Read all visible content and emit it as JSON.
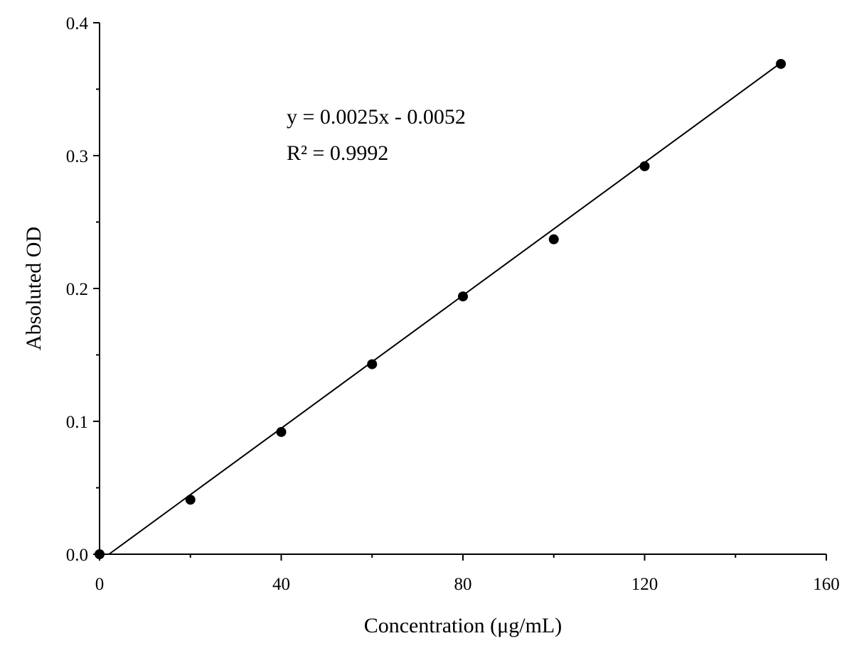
{
  "chart_data": {
    "type": "scatter",
    "x_label": "Concentration (μg/mL)",
    "y_label": "Absoluted OD",
    "annotations": [
      "y = 0.0025x - 0.0052",
      "R² = 0.9992"
    ],
    "series": [
      {
        "x": [
          0,
          20,
          40,
          60,
          80,
          100,
          120,
          150
        ],
        "values": [
          0,
          0.041,
          0.092,
          0.143,
          0.194,
          0.237,
          0.292,
          0.369
        ],
        "color": "#000000"
      }
    ],
    "fit_line": {
      "x": [
        2.08,
        150
      ],
      "values": [
        0,
        0.3698
      ],
      "color": "#000000"
    },
    "xlim": [
      0,
      160
    ],
    "xticks": [
      0,
      40,
      80,
      120,
      160
    ],
    "minor_xticks": [
      20,
      60,
      100,
      140
    ],
    "ylim": [
      0,
      0.4
    ],
    "yticks": [
      {
        "value": 0,
        "label": "0.0"
      },
      0.1,
      0.2,
      0.3,
      0.4
    ],
    "minor_yticks": [
      0.05,
      0.15,
      0.25,
      0.35
    ]
  }
}
